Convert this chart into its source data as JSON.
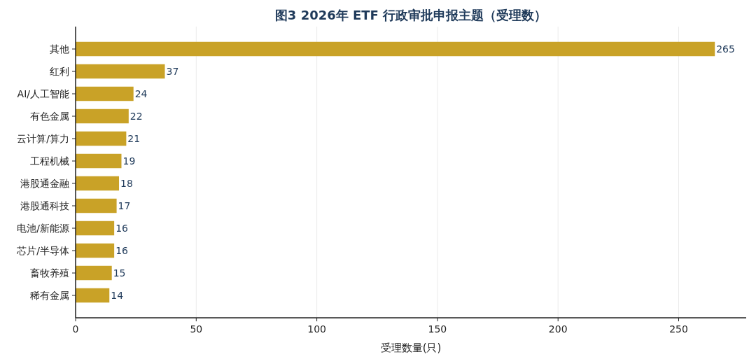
{
  "chart_data": {
    "type": "bar",
    "orientation": "horizontal",
    "title": "图3 2026年 ETF 行政审批申报主题（受理数）",
    "xlabel": "受理数量(只)",
    "categories": [
      "其他",
      "红利",
      "AI/人工智能",
      "有色金属",
      "云计算/算力",
      "工程机械",
      "港股通金融",
      "港股通科技",
      "电池/新能源",
      "芯片/半导体",
      "畜牧养殖",
      "稀有金属"
    ],
    "values": [
      265,
      37,
      24,
      22,
      21,
      19,
      18,
      17,
      16,
      16,
      15,
      14
    ],
    "color": "#c9a227",
    "xlim": [
      0,
      278
    ],
    "xticks": [
      0,
      50,
      100,
      150,
      200,
      250
    ],
    "grid": "x",
    "data_labels": true
  }
}
